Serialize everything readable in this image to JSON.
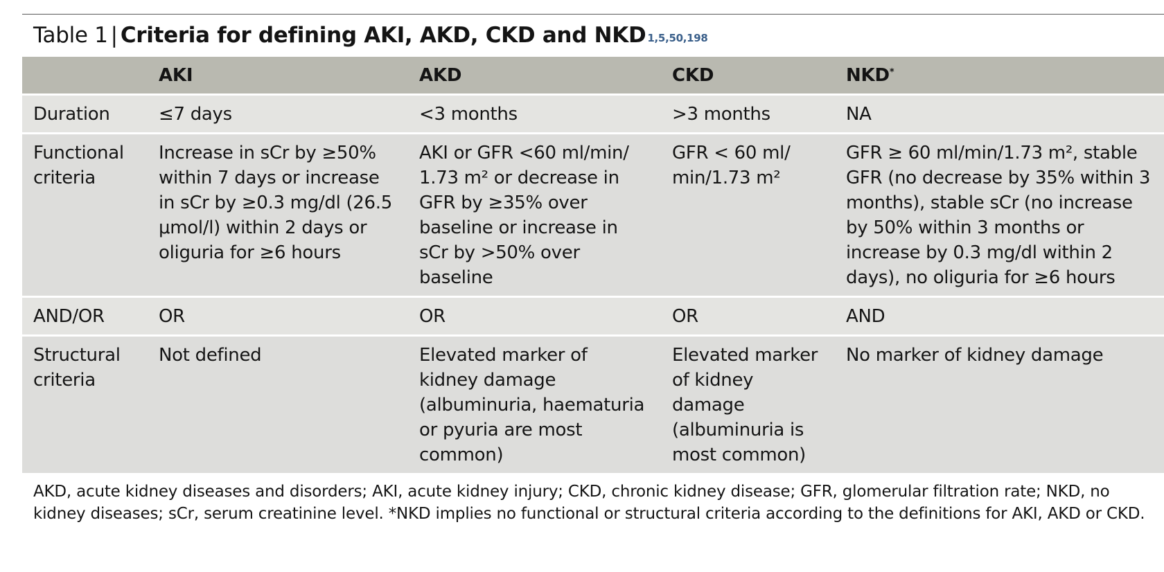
{
  "table": {
    "label": "Table 1",
    "separator": "|",
    "title": "Criteria for defining AKI, AKD, CKD and NKD",
    "refs": "1,5,50,198",
    "header": {
      "corner": "",
      "aki": "AKI",
      "akd": "AKD",
      "ckd": "CKD",
      "nkd": "NKD",
      "nkd_mark": "*"
    },
    "rows": [
      {
        "label": "Duration",
        "aki": "≤7 days",
        "akd": "<3 months",
        "ckd": ">3 months",
        "nkd": "NA"
      },
      {
        "label": "Functional criteria",
        "aki": "Increase in sCr by ≥50% within 7 days or increase in sCr by ≥0.3 mg/dl (26.5 μmol/l) within 2 days or oliguria for ≥6 hours",
        "akd": "AKI or GFR <60 ml/min/ 1.73 m² or decrease in GFR by ≥35% over baseline or increase in sCr by >50% over baseline",
        "ckd": "GFR < 60 ml/ min/1.73 m²",
        "nkd": "GFR ≥ 60 ml/min/1.73 m², stable GFR (no decrease by 35% within 3 months), stable sCr (no increase by 50% within 3 months or increase by 0.3 mg/dl within 2 days), no oliguria for ≥6 hours"
      },
      {
        "label": "AND/OR",
        "aki": "OR",
        "akd": "OR",
        "ckd": "OR",
        "nkd": "AND"
      },
      {
        "label": "Structural criteria",
        "aki": "Not defined",
        "akd": "Elevated marker of kidney damage (albuminuria, haematuria or pyuria are most common)",
        "ckd": "Elevated marker of kidney damage (albuminuria is most common)",
        "nkd": "No marker of kidney damage"
      }
    ],
    "footnote": "AKD, acute kidney diseases and disorders; AKI, acute kidney injury; CKD, chronic kidney disease; GFR, glomerular filtration rate; NKD, no kidney diseases; sCr, serum creatinine level. *NKD implies no functional or structural criteria according to the definitions for AKI, AKD or CKD."
  }
}
